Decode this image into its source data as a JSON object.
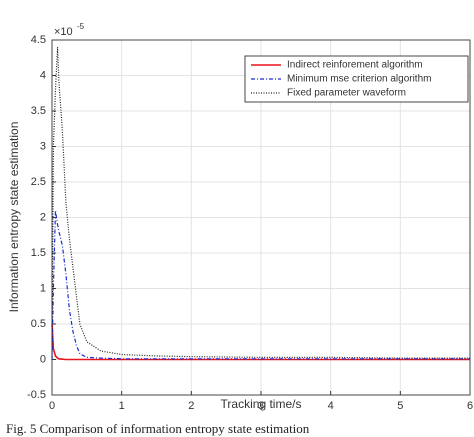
{
  "chart_data": {
    "type": "line",
    "caption": "Fig. 5   Comparison of information entropy state estimation",
    "x_label": "Tracking time/s",
    "y_label": "Information entropy state estimation",
    "y_scale_label": "×10",
    "y_scale_exponent": "-5",
    "x": [
      0,
      0.02,
      0.05,
      0.08,
      0.1,
      0.15,
      0.2,
      0.25,
      0.3,
      0.35,
      0.4,
      0.5,
      0.7,
      1,
      1.5,
      2,
      3,
      4,
      5,
      6
    ],
    "series": [
      {
        "name": "Indirect reinforement algorithm",
        "color": "#e8141c",
        "dash": "solid",
        "values": [
          0.5,
          0.15,
          0.05,
          0.02,
          0.01,
          0.005,
          0,
          0,
          0,
          0,
          0,
          0,
          0,
          0,
          0,
          0,
          0,
          0,
          0,
          0
        ]
      },
      {
        "name": "Minimum mse criterion algorithm",
        "color": "#1a2fd0",
        "dash": "dashdot",
        "values": [
          0,
          1.0,
          2.1,
          1.9,
          1.8,
          1.6,
          1.2,
          0.7,
          0.4,
          0.2,
          0.08,
          0.03,
          0.02,
          0.01,
          0.01,
          0.01,
          0.01,
          0.01,
          0.01,
          0.01
        ]
      },
      {
        "name": "Fixed parameter waveform",
        "color": "#222222",
        "dash": "dotted",
        "values": [
          0,
          3.0,
          3.8,
          4.4,
          3.9,
          3.2,
          2.2,
          1.7,
          1.3,
          0.9,
          0.5,
          0.25,
          0.12,
          0.07,
          0.05,
          0.04,
          0.03,
          0.03,
          0.02,
          0.02
        ]
      }
    ],
    "xlim": [
      0,
      6
    ],
    "xticks": [
      0,
      1,
      2,
      3,
      4,
      5,
      6
    ],
    "ylim": [
      -0.5,
      4.5
    ],
    "yticks": [
      -0.5,
      0,
      0.5,
      1,
      1.5,
      2,
      2.5,
      3,
      3.5,
      4,
      4.5
    ],
    "grid": true,
    "legend": "upper right"
  }
}
